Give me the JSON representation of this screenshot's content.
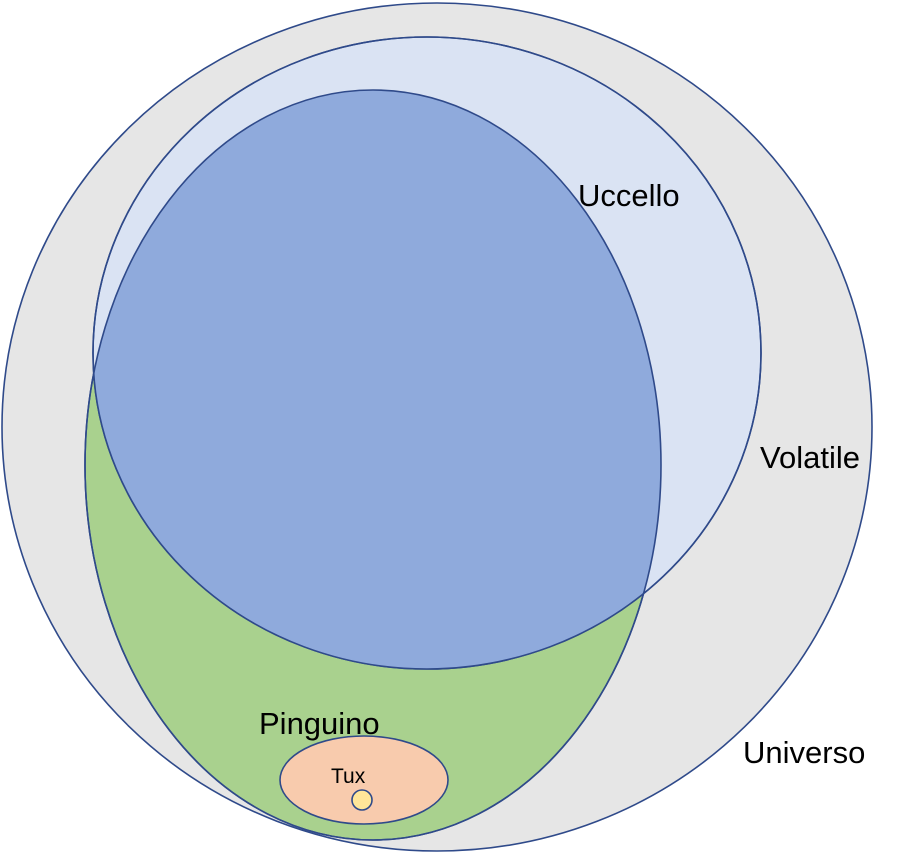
{
  "diagram": {
    "sets": {
      "universo": {
        "label": "Universo",
        "fill": "#e6e6e6",
        "stroke": "#2f4a8a"
      },
      "volatile": {
        "label": "Volatile",
        "fill": "#dae3f3",
        "stroke": "#2f4a8a"
      },
      "uccello": {
        "label": "Uccello",
        "fill": "#8faadc",
        "stroke": "#2f4a8a"
      },
      "pinguino": {
        "label": "Pinguino",
        "fill": "#a9d18e",
        "stroke": "#2f4a8a"
      },
      "tux": {
        "label": "Tux",
        "fill": "#f8cbad",
        "stroke": "#2f4a8a"
      }
    },
    "element": {
      "fill": "#ffe699",
      "stroke": "#2f4a8a"
    }
  }
}
